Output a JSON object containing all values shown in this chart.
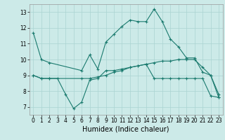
{
  "title": "",
  "xlabel": "Humidex (Indice chaleur)",
  "bg_color": "#cceae8",
  "grid_color": "#aad4d2",
  "line_color": "#1a7a6e",
  "xlim": [
    -0.5,
    23.5
  ],
  "ylim": [
    6.5,
    13.5
  ],
  "yticks": [
    7,
    8,
    9,
    10,
    11,
    12,
    13
  ],
  "xticks": [
    0,
    1,
    2,
    3,
    4,
    5,
    6,
    7,
    8,
    9,
    10,
    11,
    12,
    13,
    14,
    15,
    16,
    17,
    18,
    19,
    20,
    21,
    22,
    23
  ],
  "series1_x": [
    0,
    1,
    2,
    6,
    7,
    8,
    9,
    10,
    11,
    12,
    13,
    14,
    15,
    16,
    17,
    18,
    19,
    20,
    21,
    22,
    23
  ],
  "series1_y": [
    11.7,
    10.0,
    9.8,
    9.3,
    10.3,
    9.4,
    11.1,
    11.6,
    12.1,
    12.5,
    12.4,
    12.4,
    13.2,
    12.4,
    11.3,
    10.8,
    10.1,
    10.1,
    9.2,
    9.0,
    7.8
  ],
  "series2_x": [
    0,
    1,
    2,
    3,
    4,
    5,
    6,
    7,
    8,
    9,
    10,
    11,
    12,
    13,
    14,
    15,
    16,
    17,
    18,
    19,
    20,
    21,
    22,
    23
  ],
  "series2_y": [
    9.0,
    8.8,
    8.8,
    8.8,
    7.8,
    6.9,
    7.3,
    8.7,
    8.8,
    9.3,
    9.3,
    9.4,
    9.5,
    9.6,
    9.7,
    8.8,
    8.8,
    8.8,
    8.8,
    8.8,
    8.8,
    8.8,
    7.7,
    7.6
  ],
  "series3_x": [
    0,
    1,
    2,
    6,
    7,
    8,
    9,
    10,
    11,
    12,
    13,
    14,
    15,
    16,
    17,
    18,
    19,
    20,
    21,
    22,
    23
  ],
  "series3_y": [
    9.0,
    8.8,
    8.8,
    8.8,
    8.8,
    8.9,
    9.0,
    9.2,
    9.3,
    9.5,
    9.6,
    9.7,
    9.8,
    9.9,
    9.9,
    10.0,
    10.0,
    10.0,
    9.5,
    9.0,
    7.6
  ],
  "tick_fontsize": 5.5,
  "xlabel_fontsize": 7.0
}
